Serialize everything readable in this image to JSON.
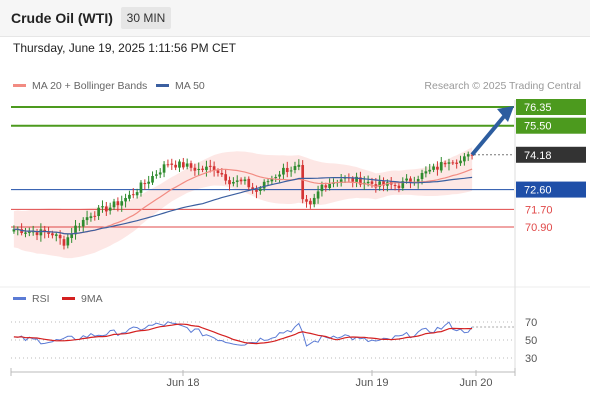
{
  "header": {
    "title": "Crude Oil (WTI)",
    "interval": "30 MIN",
    "datetime": "Thursday, June 19, 2025 1:11:56 PM CET"
  },
  "legend": {
    "ma20_label": "MA 20 + Bollinger Bands",
    "ma50_label": "MA 50",
    "credit": "Research © 2025 Trading Central"
  },
  "colors": {
    "ma20": "#f28b82",
    "band_fill": "#fde3e1",
    "ma50": "#3b5fa0",
    "resistance": "#4c9a1e",
    "support_key": "#1f4fa8",
    "support": "#e04848",
    "candle_up": "#2e8b2e",
    "candle_down": "#d43434",
    "price_tag": "#333333",
    "arrow": "#2d5d9f",
    "rsi": "#5b7bd5",
    "rsi_ma": "#d42020"
  },
  "chart_data": [
    {
      "type": "line",
      "title": "Crude Oil (WTI)",
      "ylim": [
        68.0,
        77.0
      ],
      "levels": [
        {
          "label": "76.35",
          "value": 76.35,
          "kind": "target"
        },
        {
          "label": "75.50",
          "value": 75.5,
          "kind": "target"
        },
        {
          "label": "74.18",
          "value": 74.18,
          "kind": "last_price"
        },
        {
          "label": "72.60",
          "value": 72.6,
          "kind": "pivot"
        },
        {
          "label": "71.70",
          "value": 71.7,
          "kind": "support"
        },
        {
          "label": "70.90",
          "value": 70.9,
          "kind": "support"
        }
      ],
      "x_ticks": [
        "Jun 18",
        "Jun 19",
        "Jun 20"
      ],
      "series": [
        {
          "name": "MA 20 + Bollinger Bands"
        },
        {
          "name": "MA 50"
        }
      ],
      "price_anchors": [
        [
          0,
          70.8
        ],
        [
          5,
          70.7
        ],
        [
          10,
          70.6
        ],
        [
          13,
          70.2
        ],
        [
          16,
          70.9
        ],
        [
          20,
          71.5
        ],
        [
          25,
          71.8
        ],
        [
          30,
          72.3
        ],
        [
          36,
          73.2
        ],
        [
          40,
          73.8
        ],
        [
          44,
          73.7
        ],
        [
          48,
          73.5
        ],
        [
          52,
          73.6
        ],
        [
          56,
          73.0
        ],
        [
          60,
          72.9
        ],
        [
          63,
          72.5
        ],
        [
          66,
          73.0
        ],
        [
          70,
          73.5
        ],
        [
          74,
          73.6
        ],
        [
          75,
          72.0
        ],
        [
          77,
          71.8
        ],
        [
          80,
          72.8
        ],
        [
          85,
          73.1
        ],
        [
          90,
          73.0
        ],
        [
          95,
          72.8
        ],
        [
          100,
          72.8
        ],
        [
          105,
          73.2
        ],
        [
          110,
          73.6
        ],
        [
          113,
          74.0
        ],
        [
          116,
          73.9
        ],
        [
          119,
          74.18
        ]
      ],
      "band_width": 1.1
    },
    {
      "type": "line",
      "title": "",
      "ylim": [
        30,
        70
      ],
      "y_ticks": [
        70,
        50,
        30
      ],
      "series": [
        {
          "name": "RSI"
        },
        {
          "name": "9MA"
        }
      ],
      "rsi_anchors": [
        [
          0,
          52
        ],
        [
          10,
          48
        ],
        [
          20,
          55
        ],
        [
          30,
          60
        ],
        [
          36,
          66
        ],
        [
          40,
          68
        ],
        [
          45,
          63
        ],
        [
          50,
          56
        ],
        [
          55,
          49
        ],
        [
          60,
          46
        ],
        [
          66,
          53
        ],
        [
          72,
          62
        ],
        [
          74,
          66
        ],
        [
          76,
          44
        ],
        [
          80,
          52
        ],
        [
          85,
          56
        ],
        [
          90,
          50
        ],
        [
          95,
          48
        ],
        [
          100,
          53
        ],
        [
          105,
          58
        ],
        [
          110,
          62
        ],
        [
          113,
          67
        ],
        [
          116,
          60
        ],
        [
          119,
          62
        ]
      ]
    }
  ],
  "rsi_legend": {
    "rsi_label": "RSI",
    "ma_label": "9MA"
  }
}
